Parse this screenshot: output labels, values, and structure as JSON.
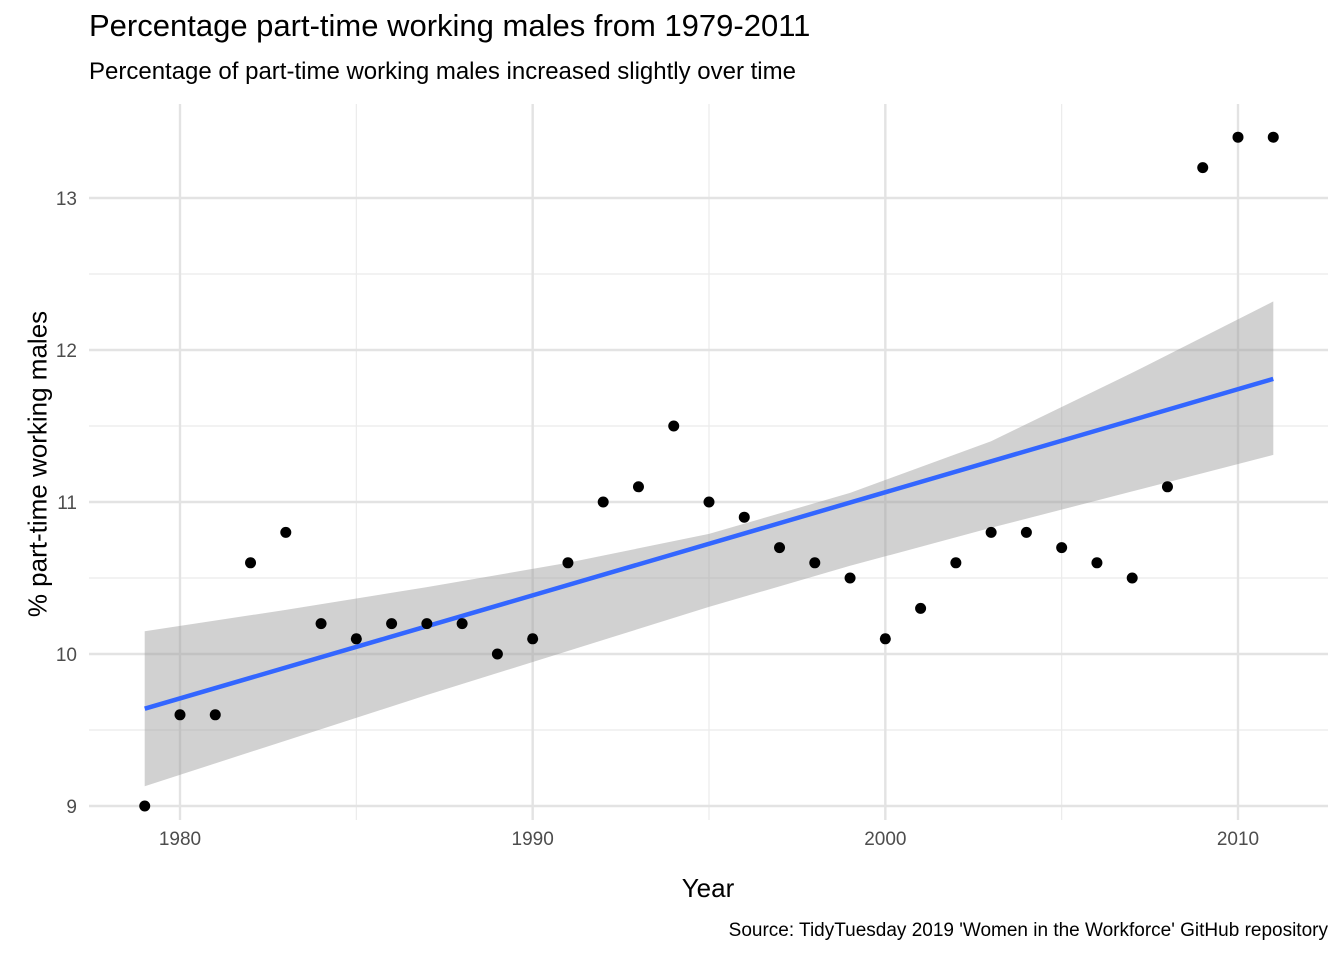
{
  "chart_data": {
    "type": "scatter",
    "title": "Percentage part-time working males from 1979-2011",
    "subtitle": "Percentage of part-time working males increased slightly over time",
    "caption": "Source: TidyTuesday 2019 'Women in the Workforce' GitHub repository",
    "xlabel": "Year",
    "ylabel": "% part-time working males",
    "xlim": [
      1977.5,
      2012.5
    ],
    "ylim": [
      8.9,
      13.55
    ],
    "x_ticks": [
      1980,
      1990,
      2000,
      2010
    ],
    "x_minor_ticks": [
      1985,
      1995,
      2005
    ],
    "y_ticks": [
      9,
      10,
      11,
      12,
      13
    ],
    "y_minor_ticks": [
      9.5,
      10.5,
      11.5,
      12.5
    ],
    "grid": true,
    "legend": "none",
    "point_color": "#000000",
    "series": [
      {
        "x": [
          1979,
          1980,
          1981,
          1982,
          1983,
          1984,
          1985,
          1986,
          1987,
          1988,
          1989,
          1990,
          1991,
          1992,
          1993,
          1994,
          1995,
          1996,
          1997,
          1998,
          1999,
          2000,
          2001,
          2002,
          2003,
          2004,
          2005,
          2006,
          2007,
          2008,
          2009,
          2010,
          2011
        ],
        "y": [
          9.0,
          9.6,
          9.6,
          10.6,
          10.8,
          10.2,
          10.1,
          10.2,
          10.2,
          10.2,
          10.0,
          10.1,
          10.6,
          11.0,
          11.1,
          11.5,
          11.0,
          10.9,
          10.7,
          10.6,
          10.5,
          10.1,
          10.3,
          10.6,
          10.8,
          10.8,
          10.7,
          10.6,
          10.5,
          11.1,
          13.2,
          13.4,
          13.4
        ]
      }
    ],
    "trend_line": {
      "method": "lm",
      "color": "#3366FF",
      "x": [
        1979,
        2011
      ],
      "y": [
        9.64,
        11.81
      ]
    },
    "confidence_band": {
      "color": "#999999",
      "x": [
        1979,
        1983,
        1987,
        1991,
        1995,
        1999,
        2003,
        2007,
        2011
      ],
      "lower": [
        9.13,
        9.43,
        9.73,
        10.02,
        10.31,
        10.58,
        10.83,
        11.07,
        11.31
      ],
      "upper": [
        10.15,
        10.29,
        10.44,
        10.6,
        10.79,
        11.06,
        11.4,
        11.85,
        12.32
      ]
    }
  }
}
